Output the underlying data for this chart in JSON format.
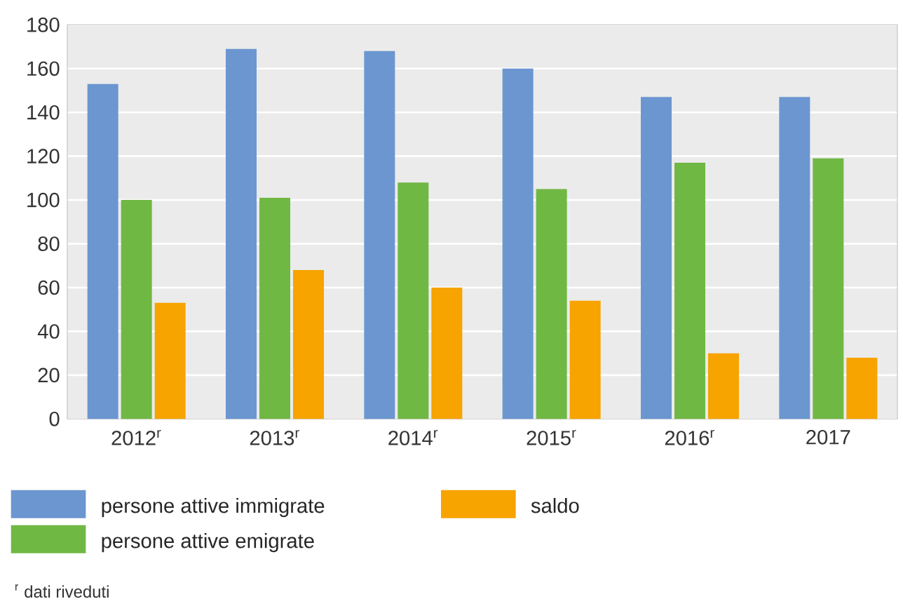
{
  "chart_data": {
    "type": "bar",
    "categories": [
      "2012$^{r}$",
      "2013$^{r}$",
      "2014$^{r}$",
      "2015$^{r}$",
      "2016$^{r}$",
      "2017"
    ],
    "series": [
      {
        "name": "persone attive immigrate",
        "color": "#6b96d0",
        "values": [
          153,
          169,
          168,
          160,
          147,
          147
        ]
      },
      {
        "name": "persone attive emigrate",
        "color": "#70b844",
        "values": [
          100,
          101,
          108,
          105,
          117,
          119
        ]
      },
      {
        "name": "saldo",
        "color": "#f7a300",
        "values": [
          53,
          68,
          60,
          54,
          30,
          28
        ]
      }
    ],
    "ylim": [
      0,
      180
    ],
    "yticks": [
      0,
      20,
      40,
      60,
      80,
      100,
      120,
      140,
      160,
      180
    ],
    "grid": "y",
    "legend": "bottom",
    "annotations": [
      "$^{r}$ dati riveduti"
    ]
  }
}
